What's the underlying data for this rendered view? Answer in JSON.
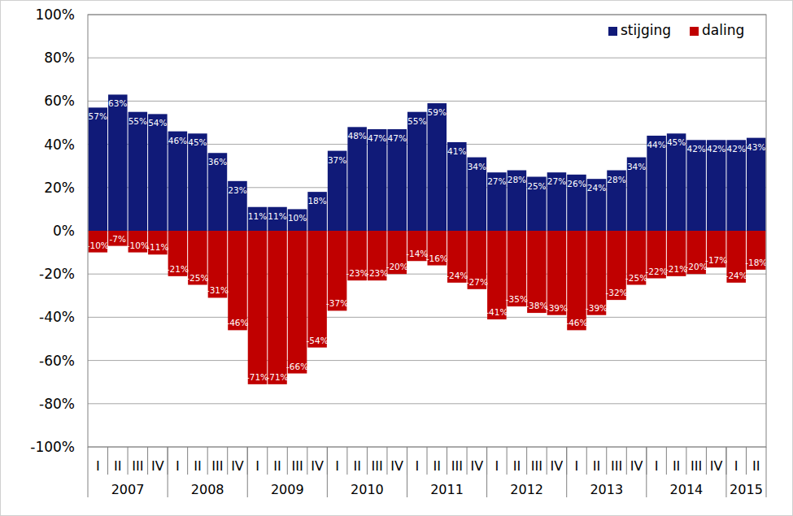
{
  "chart_data": {
    "type": "bar",
    "stacked": true,
    "data_labels": true,
    "grid": true,
    "legend": "top-right",
    "categories": [
      "I",
      "II",
      "III",
      "IV",
      "I",
      "II",
      "III",
      "IV",
      "I",
      "II",
      "III",
      "IV",
      "I",
      "II",
      "III",
      "IV",
      "I",
      "II",
      "III",
      "IV",
      "I",
      "II",
      "III",
      "IV",
      "I",
      "II",
      "III",
      "IV",
      "I",
      "II",
      "III",
      "IV",
      "I",
      "II"
    ],
    "x_groups": [
      {
        "label": "2007",
        "size": 4
      },
      {
        "label": "2008",
        "size": 4
      },
      {
        "label": "2009",
        "size": 4
      },
      {
        "label": "2010",
        "size": 4
      },
      {
        "label": "2011",
        "size": 4
      },
      {
        "label": "2012",
        "size": 4
      },
      {
        "label": "2013",
        "size": 4
      },
      {
        "label": "2014",
        "size": 4
      },
      {
        "label": "2015",
        "size": 2
      }
    ],
    "ylim": [
      -100,
      100
    ],
    "yticks": [
      {
        "value": -100,
        "label": "-100%"
      },
      {
        "value": -80,
        "label": "-80%"
      },
      {
        "value": -60,
        "label": "-60%"
      },
      {
        "value": -40,
        "label": "-40%"
      },
      {
        "value": -20,
        "label": "-20%"
      },
      {
        "value": 0,
        "label": "0%"
      },
      {
        "value": 20,
        "label": "20%"
      },
      {
        "value": 40,
        "label": "40%"
      },
      {
        "value": 60,
        "label": "60%"
      },
      {
        "value": 80,
        "label": "80%"
      },
      {
        "value": 100,
        "label": "100%"
      }
    ],
    "series": [
      {
        "name": "stijging",
        "color": "#101a78",
        "values": [
          57,
          63,
          55,
          54,
          46,
          45,
          36,
          23,
          11,
          11,
          10,
          18,
          37,
          48,
          47,
          47,
          55,
          59,
          41,
          34,
          27,
          28,
          25,
          27,
          26,
          24,
          28,
          34,
          44,
          45,
          42,
          42,
          42,
          43
        ],
        "value_labels": [
          "57%",
          "63%",
          "55%",
          "54%",
          "46%",
          "45%",
          "36%",
          "23%",
          "11%",
          "11%",
          "10%",
          "18%",
          "37%",
          "48%",
          "47%",
          "47%",
          "55%",
          "59%",
          "41%",
          "34%",
          "27%",
          "28%",
          "25%",
          "27%",
          "26%",
          "24%",
          "28%",
          "34%",
          "44%",
          "45%",
          "42%",
          "42%",
          "42%",
          "43%"
        ]
      },
      {
        "name": "daling",
        "color": "#c00000",
        "values": [
          -10,
          -7,
          -10,
          -11,
          -21,
          -25,
          -31,
          -46,
          -71,
          -71,
          -66,
          -54,
          -37,
          -23,
          -23,
          -20,
          -14,
          -16,
          -24,
          -27,
          -41,
          -35,
          -38,
          -39,
          -46,
          -39,
          -32,
          -25,
          -22,
          -21,
          -20,
          -17,
          -24,
          -18
        ],
        "value_labels": [
          "-10%",
          "-7%",
          "-10%",
          "-11%",
          "-21%",
          "-25%",
          "-31%",
          "-46%",
          "-71%",
          "-71%",
          "-66%",
          "-54%",
          "-37%",
          "-23%",
          "-23%",
          "-20%",
          "-14%",
          "-16%",
          "-24%",
          "-27%",
          "-41%",
          "-35%",
          "-38%",
          "-39%",
          "-46%",
          "-39%",
          "-32%",
          "-25%",
          "-22%",
          "-21%",
          "-20%",
          "-17%",
          "-24%",
          "-18%"
        ]
      }
    ]
  }
}
